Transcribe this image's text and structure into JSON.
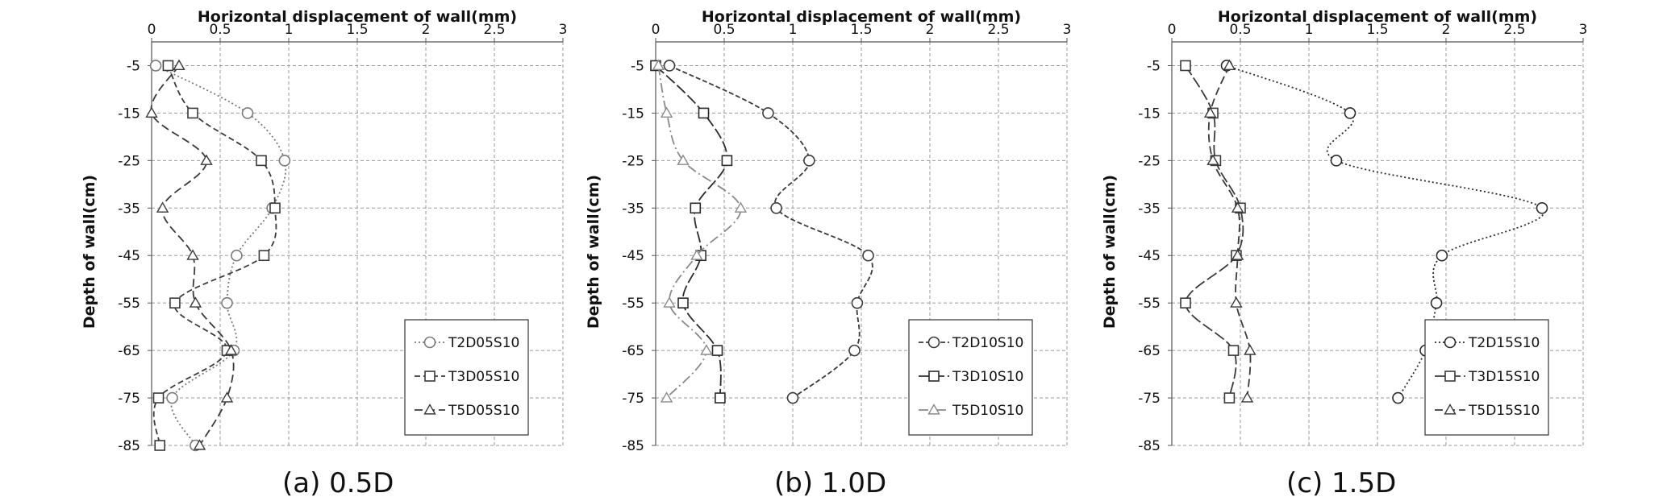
{
  "chart_data": [
    {
      "type": "line",
      "caption": "(a) 0.5D",
      "xlabel": "Horizontal displacement of wall(mm)",
      "ylabel": "Depth of wall(cm)",
      "xlim": [
        0,
        3
      ],
      "ylim": [
        -85,
        0
      ],
      "xticks": [
        "0",
        "0.5",
        "1",
        "1.5",
        "2",
        "2.5",
        "3"
      ],
      "yticks": [
        "-5",
        "-15",
        "-25",
        "-35",
        "-45",
        "-55",
        "-65",
        "-75",
        "-85"
      ],
      "grid": true,
      "legend_position": "bottom-right",
      "series": [
        {
          "name": "T2D05S10",
          "marker": "circle",
          "dash": "2,3",
          "color": "#7a7a7a",
          "x": [
            0.03,
            0.7,
            0.97,
            0.88,
            0.62,
            0.55,
            0.6,
            0.15,
            0.32
          ],
          "y": [
            -5,
            -15,
            -25,
            -35,
            -45,
            -55,
            -65,
            -75,
            -85
          ]
        },
        {
          "name": "T3D05S10",
          "marker": "square",
          "dash": "7,4",
          "color": "#3a3a3a",
          "x": [
            0.12,
            0.3,
            0.8,
            0.9,
            0.82,
            0.17,
            0.55,
            0.05,
            0.06
          ],
          "y": [
            -5,
            -15,
            -25,
            -35,
            -45,
            -55,
            -65,
            -75,
            -85
          ]
        },
        {
          "name": "T5D05S10",
          "marker": "triangle",
          "dash": "10,5",
          "color": "#3a3a3a",
          "x": [
            0.2,
            0.0,
            0.4,
            0.08,
            0.3,
            0.32,
            0.58,
            0.55,
            0.35
          ],
          "y": [
            -5,
            -15,
            -25,
            -35,
            -45,
            -55,
            -65,
            -75,
            -85
          ]
        }
      ]
    },
    {
      "type": "line",
      "caption": "(b) 1.0D",
      "xlabel": "Horizontal displacement of wall(mm)",
      "ylabel": "Depth of wall(cm)",
      "xlim": [
        0,
        3
      ],
      "ylim": [
        -85,
        0
      ],
      "xticks": [
        "0",
        "0.5",
        "1",
        "1.5",
        "2",
        "2.5",
        "3"
      ],
      "yticks": [
        "-5",
        "-15",
        "-25",
        "-35",
        "-45",
        "-55",
        "-65",
        "-75",
        "-85"
      ],
      "grid": true,
      "legend_position": "bottom-right",
      "series": [
        {
          "name": "T2D10S10",
          "marker": "circle",
          "dash": "6,3",
          "color": "#3a3a3a",
          "x": [
            0.1,
            0.82,
            1.12,
            0.88,
            1.55,
            1.47,
            1.45,
            1.0
          ],
          "y": [
            -5,
            -15,
            -25,
            -35,
            -45,
            -55,
            -65,
            -75
          ]
        },
        {
          "name": "T3D10S10",
          "marker": "square",
          "dash": "14,4",
          "color": "#2a2a2a",
          "x": [
            0.0,
            0.35,
            0.52,
            0.29,
            0.33,
            0.2,
            0.45,
            0.47
          ],
          "y": [
            -5,
            -15,
            -25,
            -35,
            -45,
            -55,
            -65,
            -75
          ]
        },
        {
          "name": "T5D10S10",
          "marker": "triangle",
          "dash": "12,4,2,4",
          "color": "#8a8a8a",
          "x": [
            0.02,
            0.08,
            0.2,
            0.62,
            0.3,
            0.1,
            0.37,
            0.08
          ],
          "y": [
            -5,
            -15,
            -25,
            -35,
            -45,
            -55,
            -65,
            -75
          ]
        }
      ]
    },
    {
      "type": "line",
      "caption": "(c) 1.5D",
      "xlabel": "Horizontal displacement of wall(mm)",
      "ylabel": "Depth of wall(cm)",
      "xlim": [
        0,
        3
      ],
      "ylim": [
        -85,
        0
      ],
      "xticks": [
        "0",
        "0.5",
        "1",
        "1.5",
        "2",
        "2.5",
        "3"
      ],
      "yticks": [
        "-5",
        "-15",
        "-25",
        "-35",
        "-45",
        "-55",
        "-65",
        "-75",
        "-85"
      ],
      "grid": true,
      "legend_position": "bottom-right",
      "series": [
        {
          "name": "T2D15S10",
          "marker": "circle",
          "dash": "2,3",
          "color": "#2a2a2a",
          "x": [
            0.4,
            1.3,
            1.2,
            2.7,
            1.97,
            1.93,
            1.85,
            1.65
          ],
          "y": [
            -5,
            -15,
            -25,
            -35,
            -45,
            -55,
            -65,
            -75
          ]
        },
        {
          "name": "T3D15S10",
          "marker": "square",
          "dash": "14,4",
          "color": "#3a3a3a",
          "x": [
            0.1,
            0.3,
            0.32,
            0.5,
            0.47,
            0.1,
            0.45,
            0.42
          ],
          "y": [
            -5,
            -15,
            -25,
            -35,
            -45,
            -55,
            -65,
            -75
          ]
        },
        {
          "name": "T5D15S10",
          "marker": "triangle",
          "dash": "10,5",
          "color": "#3a3a3a",
          "x": [
            0.42,
            0.28,
            0.3,
            0.48,
            0.48,
            0.47,
            0.57,
            0.55
          ],
          "y": [
            -5,
            -15,
            -25,
            -35,
            -45,
            -55,
            -65,
            -75
          ]
        }
      ]
    }
  ]
}
